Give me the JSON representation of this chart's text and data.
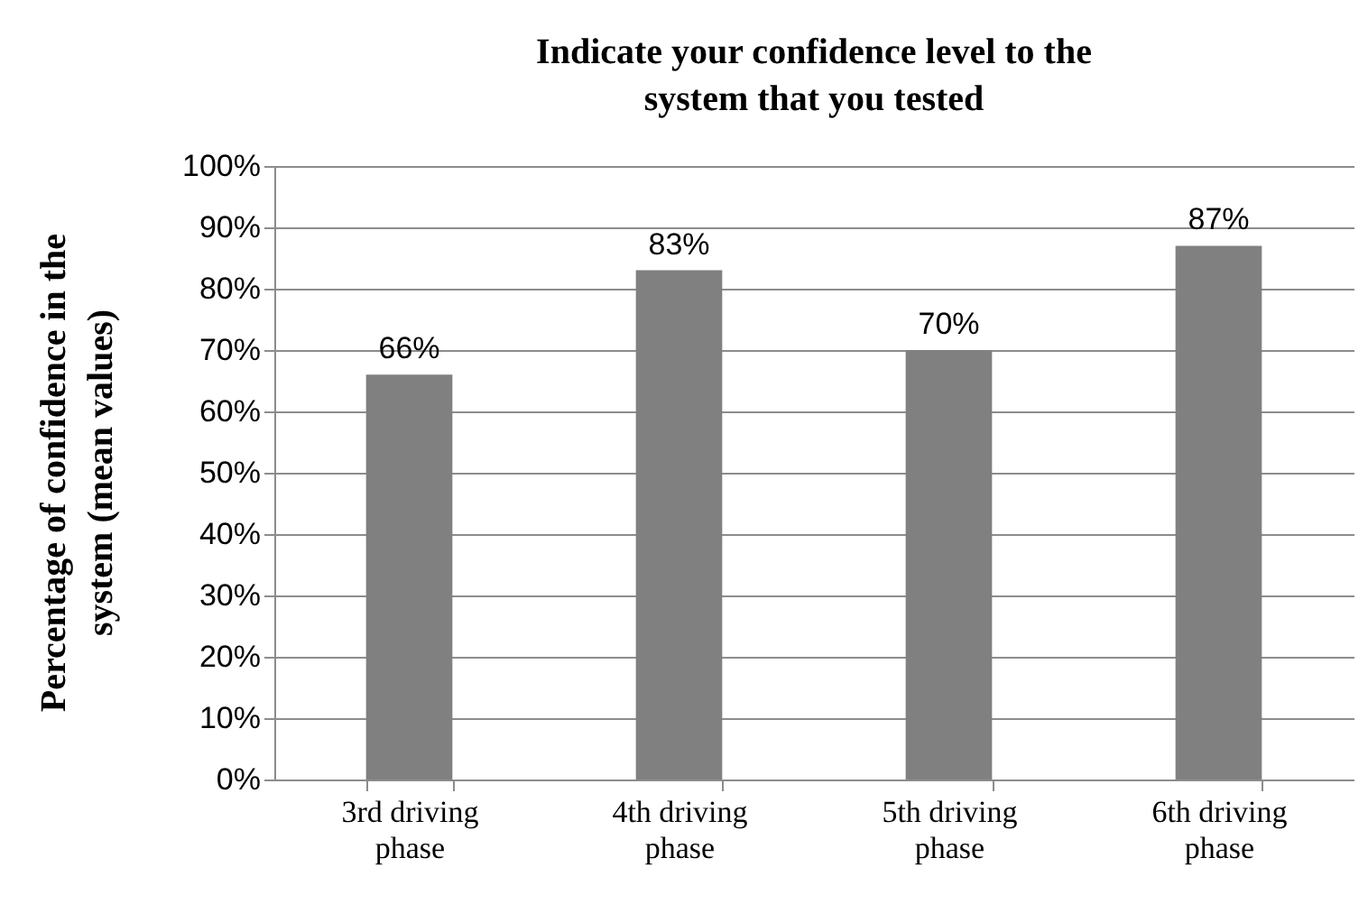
{
  "chart_data": {
    "type": "bar",
    "title": "Indicate your confidence level to the system that you tested",
    "ylabel": "Percentage of confidence in the system (mean values)",
    "categories": [
      "3rd driving phase",
      "4th driving phase",
      "5th driving phase",
      "6th driving phase"
    ],
    "values": [
      66,
      83,
      70,
      87
    ],
    "color": "#808080",
    "value_labels": [
      "66%",
      "83%",
      "70%",
      "87%"
    ],
    "ylim": [
      0,
      100
    ],
    "yticks": [
      {
        "value": 0,
        "label": "0%"
      },
      {
        "value": 10,
        "label": "10%"
      },
      {
        "value": 20,
        "label": "20%"
      },
      {
        "value": 30,
        "label": "30%"
      },
      {
        "value": 40,
        "label": "40%"
      },
      {
        "value": 50,
        "label": "50%"
      },
      {
        "value": 60,
        "label": "60%"
      },
      {
        "value": 70,
        "label": "70%"
      },
      {
        "value": 80,
        "label": "80%"
      },
      {
        "value": 90,
        "label": "90%"
      },
      {
        "value": 100,
        "label": "100%"
      }
    ],
    "grid": "y"
  }
}
